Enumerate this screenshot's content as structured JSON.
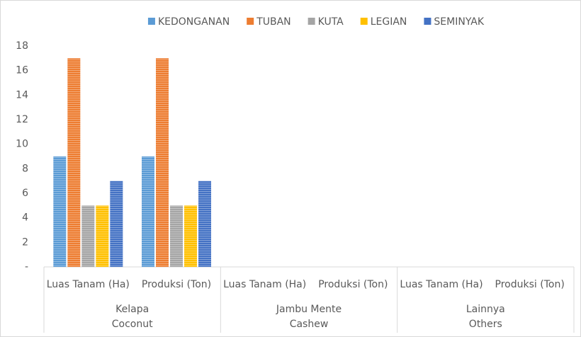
{
  "chart_data": {
    "type": "bar",
    "categories": [
      "Luas Tanam (Ha)",
      "Produksi (Ton)",
      "Luas Tanam (Ha)",
      "Produksi (Ton)",
      "Luas Tanam (Ha)",
      "Produksi (Ton)"
    ],
    "groups": [
      [
        "Kelapa",
        "Coconut"
      ],
      [
        "Jambu Mente",
        "Cashew"
      ],
      [
        "Lainnya",
        "Others"
      ]
    ],
    "series": [
      {
        "name": "KEDONGANAN",
        "color": "#5b9bd5",
        "values": [
          9,
          9,
          0,
          0,
          0,
          0
        ]
      },
      {
        "name": "TUBAN",
        "color": "#ed7d31",
        "values": [
          17,
          17,
          0,
          0,
          0,
          0
        ]
      },
      {
        "name": "KUTA",
        "color": "#a5a5a5",
        "values": [
          5,
          5,
          0,
          0,
          0,
          0
        ]
      },
      {
        "name": "LEGIAN",
        "color": "#ffc000",
        "values": [
          5,
          5,
          0,
          0,
          0,
          0
        ]
      },
      {
        "name": "SEMINYAK",
        "color": "#4472c4",
        "values": [
          7,
          7,
          0,
          0,
          0,
          0
        ]
      }
    ],
    "ylim": [
      0,
      18
    ],
    "yticks": [
      {
        "value": 0,
        "label": "-"
      },
      2,
      4,
      6,
      8,
      10,
      12,
      14,
      16,
      18
    ],
    "grid": false,
    "legend": "top"
  }
}
